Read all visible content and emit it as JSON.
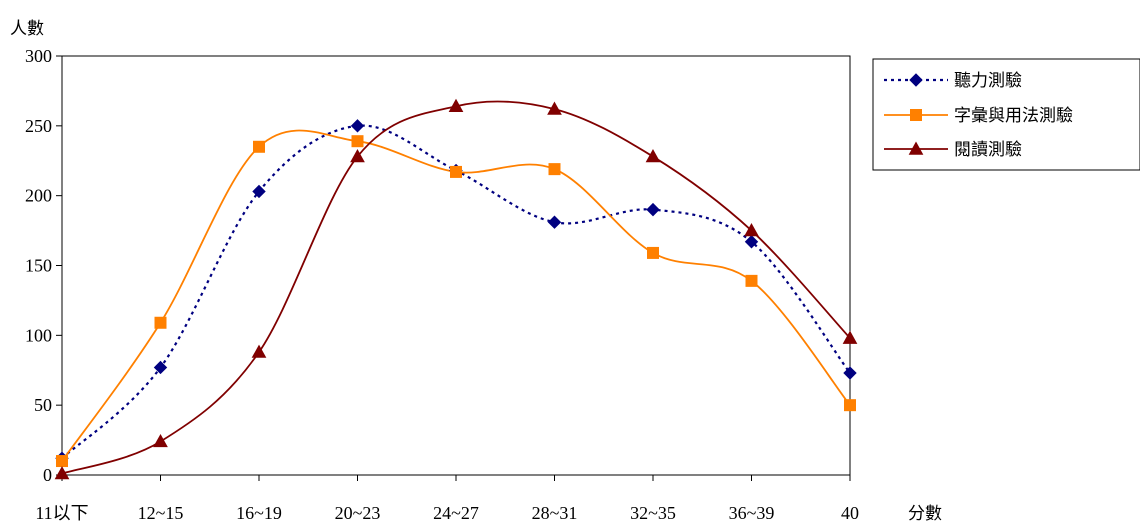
{
  "chart_data": {
    "type": "line",
    "ylabel": "人數",
    "xlabel": "分數",
    "categories": [
      "11以下",
      "12~15",
      "16~19",
      "20~23",
      "24~27",
      "28~31",
      "32~35",
      "36~39",
      "40"
    ],
    "ylim": [
      0,
      300
    ],
    "yticks": [
      0,
      50,
      100,
      150,
      200,
      250,
      300
    ],
    "grid": false,
    "legend_position": "right",
    "series": [
      {
        "name": "聽力測驗",
        "values": [
          12,
          77,
          203,
          250,
          218,
          181,
          190,
          167,
          73
        ],
        "color": "#000080",
        "marker": "diamond",
        "dash": "dotted"
      },
      {
        "name": "字彙與用法測驗",
        "values": [
          10,
          109,
          235,
          239,
          217,
          219,
          159,
          139,
          50
        ],
        "color": "#FF8000",
        "marker": "square",
        "dash": "solid"
      },
      {
        "name": "閱讀測驗",
        "values": [
          1,
          24,
          88,
          228,
          264,
          262,
          228,
          175,
          98
        ],
        "color": "#800000",
        "marker": "triangle",
        "dash": "solid"
      }
    ]
  }
}
